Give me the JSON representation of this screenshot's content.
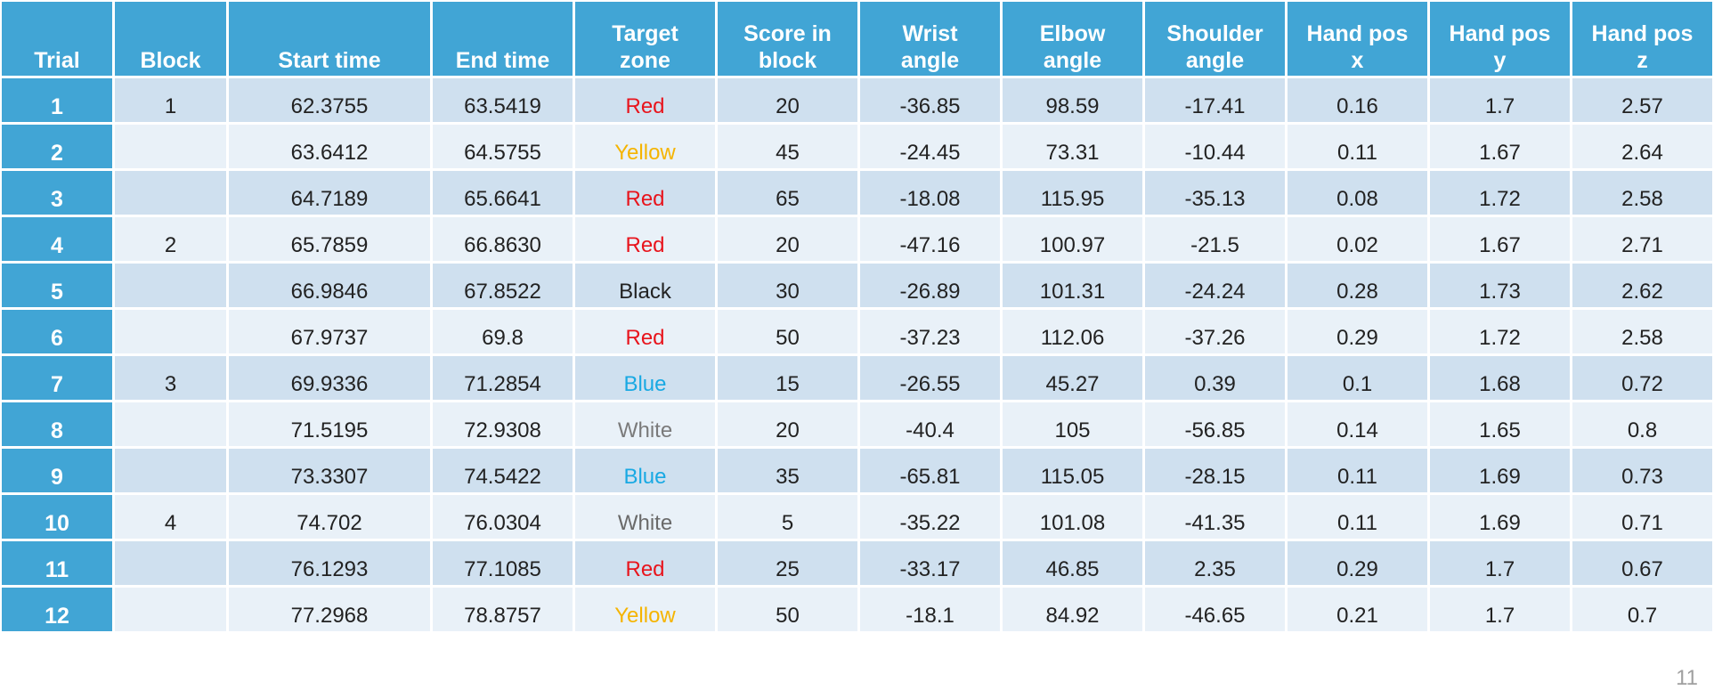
{
  "table": {
    "columns": [
      "Trial",
      "Block",
      "Start time",
      "End time",
      "Target\nzone",
      "Score in\nblock",
      "Wrist\nangle",
      "Elbow\nangle",
      "Shoulder\nangle",
      "Hand pos\nx",
      "Hand pos\ny",
      "Hand pos\nz"
    ],
    "rows": [
      {
        "trial": "1",
        "block": "1",
        "start": "62.3755",
        "end": "63.5419",
        "zone": "Red",
        "zone_color": "#e8141c",
        "score": "20",
        "wrist": "-36.85",
        "elbow": "98.59",
        "shoulder": "-17.41",
        "x": "0.16",
        "y": "1.7",
        "z": "2.57"
      },
      {
        "trial": "2",
        "block": "",
        "start": "63.6412",
        "end": "64.5755",
        "zone": "Yellow",
        "zone_color": "#f5b400",
        "score": "45",
        "wrist": "-24.45",
        "elbow": "73.31",
        "shoulder": "-10.44",
        "x": "0.11",
        "y": "1.67",
        "z": "2.64"
      },
      {
        "trial": "3",
        "block": "",
        "start": "64.7189",
        "end": "65.6641",
        "zone": "Red",
        "zone_color": "#e8141c",
        "score": "65",
        "wrist": "-18.08",
        "elbow": "115.95",
        "shoulder": "-35.13",
        "x": "0.08",
        "y": "1.72",
        "z": "2.58"
      },
      {
        "trial": "4",
        "block": "2",
        "start": "65.7859",
        "end": "66.8630",
        "zone": "Red",
        "zone_color": "#e8141c",
        "score": "20",
        "wrist": "-47.16",
        "elbow": "100.97",
        "shoulder": "-21.5",
        "x": "0.02",
        "y": "1.67",
        "z": "2.71"
      },
      {
        "trial": "5",
        "block": "",
        "start": "66.9846",
        "end": "67.8522",
        "zone": "Black",
        "zone_color": "#222222",
        "score": "30",
        "wrist": "-26.89",
        "elbow": "101.31",
        "shoulder": "-24.24",
        "x": "0.28",
        "y": "1.73",
        "z": "2.62"
      },
      {
        "trial": "6",
        "block": "",
        "start": "67.9737",
        "end": "69.8",
        "zone": "Red",
        "zone_color": "#e8141c",
        "score": "50",
        "wrist": "-37.23",
        "elbow": "112.06",
        "shoulder": "-37.26",
        "x": "0.29",
        "y": "1.72",
        "z": "2.58"
      },
      {
        "trial": "7",
        "block": "3",
        "start": "69.9336",
        "end": "71.2854",
        "zone": "Blue",
        "zone_color": "#19a9e3",
        "score": "15",
        "wrist": "-26.55",
        "elbow": "45.27",
        "shoulder": "0.39",
        "x": "0.1",
        "y": "1.68",
        "z": "0.72"
      },
      {
        "trial": "8",
        "block": "",
        "start": "71.5195",
        "end": "72.9308",
        "zone": "White",
        "zone_color": "#7a7a7a",
        "score": "20",
        "wrist": "-40.4",
        "elbow": "105",
        "shoulder": "-56.85",
        "x": "0.14",
        "y": "1.65",
        "z": "0.8"
      },
      {
        "trial": "9",
        "block": "",
        "start": "73.3307",
        "end": "74.5422",
        "zone": "Blue",
        "zone_color": "#19a9e3",
        "score": "35",
        "wrist": "-65.81",
        "elbow": "115.05",
        "shoulder": "-28.15",
        "x": "0.11",
        "y": "1.69",
        "z": "0.73"
      },
      {
        "trial": "10",
        "block": "4",
        "start": "74.702",
        "end": "76.0304",
        "zone": "White",
        "zone_color": "#6a6a6a",
        "score": "5",
        "wrist": "-35.22",
        "elbow": "101.08",
        "shoulder": "-41.35",
        "x": "0.11",
        "y": "1.69",
        "z": "0.71"
      },
      {
        "trial": "11",
        "block": "",
        "start": "76.1293",
        "end": "77.1085",
        "zone": "Red",
        "zone_color": "#e8141c",
        "score": "25",
        "wrist": "-33.17",
        "elbow": "46.85",
        "shoulder": "2.35",
        "x": "0.29",
        "y": "1.7",
        "z": "0.67"
      },
      {
        "trial": "12",
        "block": "",
        "start": "77.2968",
        "end": "78.8757",
        "zone": "Yellow",
        "zone_color": "#f5b400",
        "score": "50",
        "wrist": "-18.1",
        "elbow": "84.92",
        "shoulder": "-46.65",
        "x": "0.21",
        "y": "1.7",
        "z": "0.7"
      }
    ]
  },
  "page_number": "11"
}
